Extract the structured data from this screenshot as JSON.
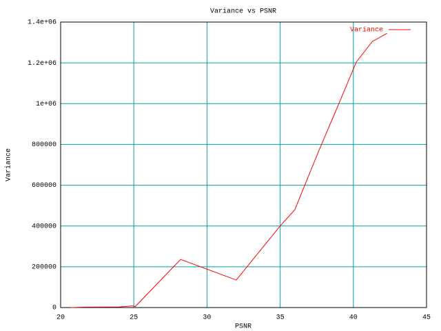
{
  "chart_data": {
    "type": "line",
    "title": "Variance vs PSNR",
    "xlabel": "PSNR",
    "ylabel": "Variance",
    "x": [
      20.7,
      21.7,
      24.0,
      24.9,
      25.1,
      28.2,
      32.0,
      35.0,
      36.0,
      37.6,
      39.0,
      40.2,
      41.3,
      42.3
    ],
    "series": [
      {
        "name": "Variance",
        "color": "#ff0000",
        "values": [
          0,
          2000,
          3000,
          8000,
          5000,
          236000,
          135000,
          400000,
          480000,
          762000,
          998000,
          1204000,
          1305000,
          1345000
        ]
      }
    ],
    "xlim": [
      20,
      45
    ],
    "xticks": [
      20,
      25,
      30,
      35,
      40,
      45
    ],
    "ylim": [
      0,
      1400000
    ],
    "yticks": [
      0,
      200000,
      400000,
      600000,
      800000,
      {
        "value": 1000000,
        "label": "1e+06"
      },
      {
        "value": 1200000,
        "label": "1.2e+06"
      },
      {
        "value": 1400000,
        "label": "1.4e+06"
      }
    ],
    "grid": true,
    "grid_color": "#00a0a0",
    "legend": "top-right"
  }
}
